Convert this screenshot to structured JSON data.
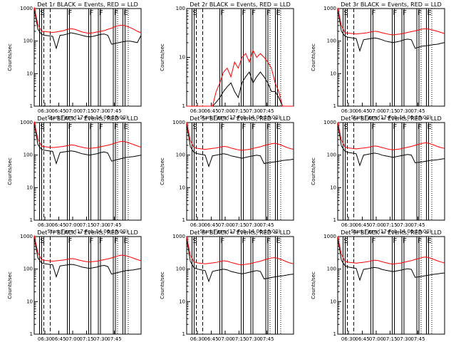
{
  "figure": {
    "subtitle": "Start Time (17-Feb-14 06:16:00)",
    "ylabel": "Counts/sec",
    "xticks": [
      "06:30",
      "06:45",
      "07:00",
      "07:15",
      "07:30",
      "07:45"
    ],
    "yticks": [
      "1",
      "10",
      "100",
      "1000"
    ],
    "markers": [
      "S",
      "F",
      "F",
      "F",
      "F",
      "E"
    ]
  },
  "colors": {
    "events": "#000000",
    "lld": "#ff0000"
  },
  "chart_data": [
    {
      "type": "line",
      "title": "Det 1r BLACK = Events, RED = LLD",
      "xlabel": "Start Time (17-Feb-14 06:16:00)",
      "ylabel": "Counts/sec",
      "ylog": true,
      "ylim": [
        1,
        1000
      ],
      "series": [
        {
          "name": "Events",
          "color": "#000000",
          "values": [
            1000,
            230,
            160,
            150,
            145,
            140,
            60,
            150,
            155,
            165,
            180,
            170,
            160,
            150,
            140,
            135,
            140,
            150,
            160,
            165,
            150,
            80,
            85,
            90,
            95,
            100,
            100,
            95,
            90,
            150
          ]
        },
        {
          "name": "LLD",
          "color": "#ff0000",
          "values": [
            1100,
            320,
            200,
            195,
            190,
            185,
            190,
            200,
            210,
            230,
            240,
            230,
            210,
            190,
            180,
            175,
            180,
            190,
            200,
            210,
            230,
            250,
            280,
            300,
            310,
            290,
            260,
            230,
            200,
            180
          ]
        }
      ]
    },
    {
      "type": "line",
      "title": "Det 2r BLACK = Events, RED = LLD",
      "xlabel": "Start Time (17-Feb-14 06:16:00)",
      "ylabel": "Counts/sec",
      "ylog": true,
      "ylim": [
        1,
        100
      ],
      "series": [
        {
          "name": "Events",
          "color": "#000000",
          "values": [
            0,
            0,
            0,
            0,
            0,
            0,
            0,
            0,
            1.2,
            1.5,
            2,
            2.5,
            3,
            2,
            1.5,
            3,
            4,
            5,
            3,
            4,
            5,
            4,
            3,
            2,
            2,
            1.5,
            1,
            0,
            0,
            0
          ]
        },
        {
          "name": "LLD",
          "color": "#ff0000",
          "values": [
            0,
            0,
            0,
            0,
            0,
            0,
            0,
            1,
            2,
            3,
            5,
            6,
            4,
            8,
            6,
            10,
            12,
            8,
            14,
            10,
            12,
            10,
            8,
            6,
            3,
            2,
            1,
            0,
            0,
            0
          ]
        }
      ]
    },
    {
      "type": "line",
      "title": "Det 3r BLACK = Events, RED = LLD",
      "xlabel": "Start Time (17-Feb-14 06:16:00)",
      "ylabel": "Counts/sec",
      "ylog": true,
      "ylim": [
        1,
        1000
      ],
      "series": [
        {
          "name": "Events",
          "color": "#000000",
          "values": [
            1000,
            200,
            140,
            130,
            125,
            120,
            50,
            110,
            115,
            120,
            125,
            120,
            110,
            100,
            95,
            90,
            95,
            100,
            110,
            115,
            110,
            60,
            65,
            70,
            72,
            75,
            78,
            80,
            85,
            90
          ]
        },
        {
          "name": "LLD",
          "color": "#ff0000",
          "values": [
            1050,
            300,
            180,
            175,
            170,
            165,
            170,
            175,
            180,
            190,
            200,
            195,
            180,
            170,
            160,
            155,
            160,
            165,
            175,
            185,
            195,
            205,
            220,
            235,
            240,
            230,
            215,
            200,
            185,
            170
          ]
        }
      ]
    },
    {
      "type": "line",
      "title": "Det 4r BLACK = Events, RED = LLD",
      "xlabel": "Start Time (17-Feb-14 06:16:00)",
      "ylabel": "Counts/sec",
      "ylog": true,
      "ylim": [
        1,
        1000
      ],
      "series": [
        {
          "name": "Events",
          "color": "#000000",
          "values": [
            1000,
            210,
            150,
            140,
            135,
            130,
            55,
            120,
            125,
            130,
            135,
            130,
            120,
            110,
            105,
            100,
            105,
            110,
            120,
            125,
            115,
            65,
            70,
            75,
            80,
            85,
            88,
            90,
            95,
            100
          ]
        },
        {
          "name": "LLD",
          "color": "#ff0000",
          "values": [
            1080,
            310,
            190,
            180,
            175,
            170,
            175,
            180,
            185,
            195,
            205,
            200,
            185,
            175,
            165,
            160,
            165,
            170,
            180,
            190,
            200,
            215,
            235,
            255,
            265,
            250,
            230,
            210,
            190,
            175
          ]
        }
      ]
    },
    {
      "type": "line",
      "title": "Det 5r BLACK = Events, RED = LLD",
      "xlabel": "Start Time (17-Feb-14 06:16:00)",
      "ylabel": "Counts/sec",
      "ylog": true,
      "ylim": [
        1,
        1000
      ],
      "series": [
        {
          "name": "Events",
          "color": "#000000",
          "values": [
            900,
            180,
            120,
            110,
            105,
            100,
            45,
            95,
            100,
            105,
            110,
            105,
            95,
            90,
            85,
            80,
            85,
            90,
            95,
            100,
            95,
            55,
            58,
            60,
            62,
            65,
            68,
            70,
            72,
            75
          ]
        },
        {
          "name": "LLD",
          "color": "#ff0000",
          "values": [
            1000,
            280,
            170,
            160,
            155,
            150,
            155,
            160,
            165,
            175,
            185,
            180,
            165,
            155,
            145,
            140,
            145,
            150,
            160,
            170,
            180,
            195,
            210,
            225,
            230,
            215,
            195,
            175,
            160,
            150
          ]
        }
      ]
    },
    {
      "type": "line",
      "title": "Det 6r BLACK = Events, RED = LLD",
      "xlabel": "Start Time (17-Feb-14 06:16:00)",
      "ylabel": "Counts/sec",
      "ylog": true,
      "ylim": [
        1,
        1000
      ],
      "series": [
        {
          "name": "Events",
          "color": "#000000",
          "values": [
            950,
            190,
            130,
            120,
            115,
            110,
            48,
            100,
            105,
            110,
            115,
            110,
            100,
            95,
            90,
            85,
            90,
            95,
            100,
            105,
            100,
            58,
            60,
            62,
            65,
            68,
            70,
            72,
            75,
            78
          ]
        },
        {
          "name": "LLD",
          "color": "#ff0000",
          "values": [
            1020,
            290,
            175,
            165,
            160,
            155,
            160,
            165,
            170,
            180,
            190,
            185,
            170,
            160,
            150,
            145,
            150,
            155,
            165,
            175,
            185,
            200,
            215,
            230,
            240,
            225,
            205,
            185,
            170,
            160
          ]
        }
      ]
    },
    {
      "type": "line",
      "title": "Det 7r BLACK = Events, RED = LLD",
      "xlabel": "Start Time (17-Feb-14 06:16:00)",
      "ylabel": "Counts/sec",
      "ylog": true,
      "ylim": [
        1,
        1000
      ],
      "series": [
        {
          "name": "Events",
          "color": "#000000",
          "values": [
            1000,
            220,
            155,
            145,
            140,
            135,
            58,
            125,
            130,
            135,
            140,
            135,
            125,
            115,
            110,
            105,
            110,
            115,
            125,
            130,
            120,
            70,
            75,
            80,
            85,
            90,
            92,
            95,
            100,
            105
          ]
        },
        {
          "name": "LLD",
          "color": "#ff0000",
          "values": [
            1090,
            315,
            195,
            185,
            180,
            175,
            180,
            185,
            190,
            200,
            210,
            205,
            190,
            180,
            170,
            165,
            170,
            175,
            185,
            195,
            205,
            220,
            240,
            260,
            270,
            255,
            235,
            215,
            195,
            180
          ]
        }
      ]
    },
    {
      "type": "line",
      "title": "Det 8r BLACK = Events, RED = LLD",
      "xlabel": "Start Time (17-Feb-14 06:16:00)",
      "ylabel": "Counts/sec",
      "ylog": true,
      "ylim": [
        1,
        1000
      ],
      "series": [
        {
          "name": "Events",
          "color": "#000000",
          "values": [
            850,
            170,
            110,
            100,
            95,
            90,
            42,
            85,
            90,
            95,
            100,
            95,
            85,
            80,
            75,
            72,
            75,
            80,
            85,
            90,
            85,
            50,
            52,
            55,
            58,
            60,
            62,
            65,
            68,
            70
          ]
        },
        {
          "name": "LLD",
          "color": "#ff0000",
          "values": [
            980,
            270,
            165,
            155,
            150,
            145,
            150,
            155,
            160,
            170,
            180,
            175,
            160,
            150,
            140,
            135,
            140,
            145,
            155,
            165,
            175,
            190,
            205,
            220,
            225,
            210,
            190,
            170,
            155,
            145
          ]
        }
      ]
    },
    {
      "type": "line",
      "title": "Det 9r BLACK = Events, RED = LLD",
      "xlabel": "Start Time (17-Feb-14 06:16:00)",
      "ylabel": "Counts/sec",
      "ylog": true,
      "ylim": [
        1,
        1000
      ],
      "series": [
        {
          "name": "Events",
          "color": "#000000",
          "values": [
            920,
            185,
            125,
            115,
            110,
            105,
            46,
            98,
            102,
            108,
            112,
            108,
            98,
            92,
            88,
            84,
            88,
            92,
            98,
            102,
            98,
            56,
            58,
            60,
            63,
            66,
            69,
            71,
            74,
            76
          ]
        },
        {
          "name": "LLD",
          "color": "#ff0000",
          "values": [
            1010,
            285,
            172,
            162,
            158,
            152,
            158,
            162,
            168,
            178,
            188,
            182,
            168,
            158,
            148,
            142,
            148,
            152,
            162,
            172,
            182,
            198,
            212,
            228,
            236,
            220,
            200,
            180,
            165,
            155
          ]
        }
      ]
    }
  ]
}
